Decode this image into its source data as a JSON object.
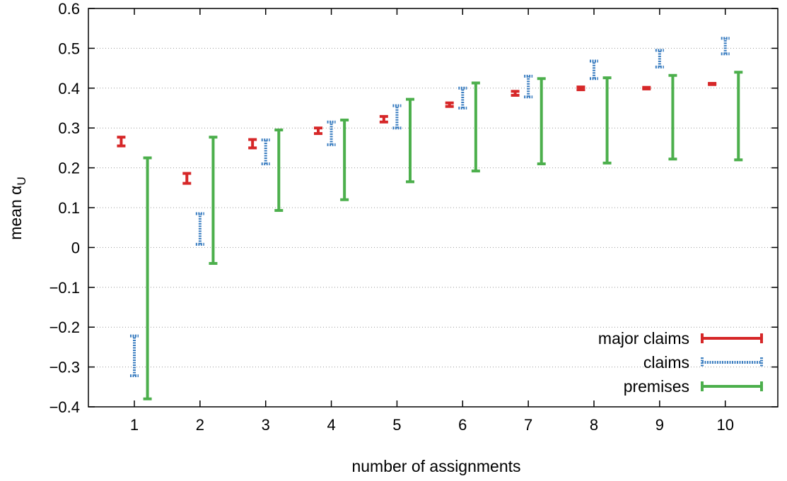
{
  "chart_data": {
    "type": "errorbar",
    "xlabel": "number of assignments",
    "ylabel_main": "mean α",
    "ylabel_subscript": "U",
    "x_ticks": [
      1,
      2,
      3,
      4,
      5,
      6,
      7,
      8,
      9,
      10
    ],
    "x_tick_labels": [
      "1",
      "2",
      "3",
      "4",
      "5",
      "6",
      "7",
      "8",
      "9",
      "10"
    ],
    "xlim": [
      0.3,
      10.8
    ],
    "ylim": [
      -0.4,
      0.6
    ],
    "y_ticks": [
      -0.4,
      -0.3,
      -0.2,
      -0.1,
      0,
      0.1,
      0.2,
      0.3,
      0.4,
      0.5,
      0.6
    ],
    "y_tick_labels": [
      "−0.4",
      "−0.3",
      "−0.2",
      "−0.1",
      "0",
      "0.1",
      "0.2",
      "0.3",
      "0.4",
      "0.5",
      "0.6"
    ],
    "grid": true,
    "legend_position": "bottom-right",
    "series": [
      {
        "name": "major claims",
        "color": "#d62728",
        "style": "solid",
        "offset": -0.2,
        "ranges": [
          [
            0.255,
            0.277
          ],
          [
            0.161,
            0.186
          ],
          [
            0.25,
            0.271
          ],
          [
            0.286,
            0.3
          ],
          [
            0.315,
            0.329
          ],
          [
            0.354,
            0.363
          ],
          [
            0.382,
            0.392
          ],
          [
            0.396,
            0.403
          ],
          [
            0.398,
            0.402
          ],
          [
            0.409,
            0.412
          ]
        ]
      },
      {
        "name": "claims",
        "color": "#3a7dc0",
        "style": "dotted",
        "offset": 0,
        "ranges": [
          [
            -0.322,
            -0.222
          ],
          [
            0.008,
            0.085
          ],
          [
            0.21,
            0.27
          ],
          [
            0.258,
            0.315
          ],
          [
            0.3,
            0.356
          ],
          [
            0.35,
            0.4
          ],
          [
            0.378,
            0.43
          ],
          [
            0.424,
            0.468
          ],
          [
            0.453,
            0.495
          ],
          [
            0.486,
            0.525
          ]
        ]
      },
      {
        "name": "premises",
        "color": "#4caf4c",
        "style": "solid",
        "offset": 0.2,
        "ranges": [
          [
            -0.38,
            0.225
          ],
          [
            -0.04,
            0.277
          ],
          [
            0.093,
            0.295
          ],
          [
            0.12,
            0.32
          ],
          [
            0.165,
            0.372
          ],
          [
            0.192,
            0.413
          ],
          [
            0.21,
            0.424
          ],
          [
            0.212,
            0.426
          ],
          [
            0.222,
            0.432
          ],
          [
            0.22,
            0.44
          ]
        ]
      }
    ]
  }
}
